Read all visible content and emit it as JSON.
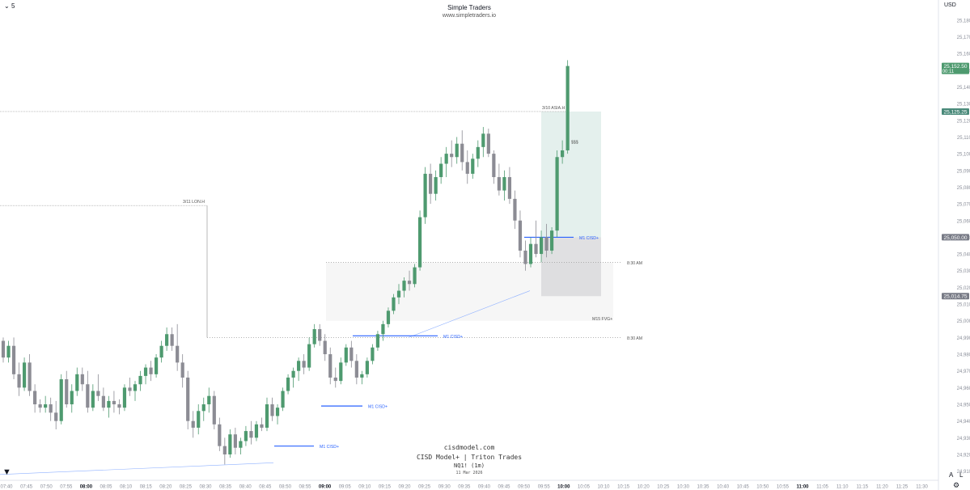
{
  "header": {
    "timeframe": "5",
    "title": "Simple Traders",
    "subtitle": "www.simpletraders.io"
  },
  "watermark": {
    "site": "cisdmodel.com",
    "line": "CISD Model+ | Triton Trades",
    "symbol": "NQ1! (1m)",
    "date": "11 Mar 2026"
  },
  "price_axis": {
    "currency": "USD"
  },
  "controls": {
    "auto": "A",
    "log": "L",
    "settings_icon": "gear-icon",
    "logo_icon": "tradingview-logo-icon"
  },
  "colors": {
    "up": "#4e9a6f",
    "down": "#8c8c94",
    "label_bg": "#787b86",
    "highlight_bg": "#4a8a7a",
    "cisd_line": "#2962ff",
    "fvg_box": "#eeeeee",
    "target_box": "#d8e9e6"
  },
  "chart_data": {
    "type": "candlestick",
    "symbol": "NQ1! (1m)",
    "ylim": [
      24905,
      25185
    ],
    "y_ticks": [
      24910,
      24920,
      24930,
      24940,
      24950,
      24960,
      24970,
      24980,
      24990,
      25000,
      25010,
      25020,
      25030,
      25040,
      25050,
      25060,
      25070,
      25080,
      25090,
      25100,
      25110,
      25120,
      25130,
      25140,
      25150,
      25160,
      25170,
      25180
    ],
    "x_ticks": [
      "07:40",
      "07:45",
      "07:50",
      "07:55",
      "08:00",
      "08:05",
      "08:10",
      "08:15",
      "08:20",
      "08:25",
      "08:30",
      "08:35",
      "08:40",
      "08:45",
      "08:50",
      "08:55",
      "09:00",
      "09:05",
      "09:10",
      "09:15",
      "09:20",
      "09:25",
      "09:30",
      "09:35",
      "09:40",
      "09:45",
      "09:50",
      "09:55",
      "10:00",
      "10:05",
      "10:10",
      "10:15",
      "10:20",
      "10:25",
      "10:30",
      "10:35",
      "10:40",
      "10:45",
      "10:50",
      "10:55",
      "11:00",
      "11:05",
      "11:10",
      "11:15",
      "11:20",
      "11:25",
      "11:30"
    ],
    "bold_x_ticks": [
      "08:00",
      "09:00",
      "10:00",
      "11:00"
    ],
    "price_labels": [
      {
        "value": "25,152.50",
        "sub": "00:11",
        "style": "live"
      },
      {
        "value": "25,125.25",
        "style": "highlight"
      },
      {
        "value": "25,050.00",
        "style": "gray"
      },
      {
        "value": "25,014.75",
        "style": "gray"
      }
    ],
    "candles": [
      [
        24988,
        24990,
        24975,
        24978
      ],
      [
        24978,
        24988,
        24975,
        24985
      ],
      [
        24985,
        24990,
        24965,
        24968
      ],
      [
        24968,
        24975,
        24955,
        24960
      ],
      [
        24960,
        24978,
        24958,
        24975
      ],
      [
        24975,
        24980,
        24955,
        24958
      ],
      [
        24958,
        24962,
        24945,
        24950
      ],
      [
        24950,
        24953,
        24945,
        24948
      ],
      [
        24948,
        24955,
        24945,
        24950
      ],
      [
        24950,
        24954,
        24940,
        24945
      ],
      [
        24945,
        24952,
        24935,
        24940
      ],
      [
        24940,
        24968,
        24938,
        24965
      ],
      [
        24965,
        24970,
        24948,
        24950
      ],
      [
        24950,
        24962,
        24945,
        24958
      ],
      [
        24958,
        24972,
        24955,
        24968
      ],
      [
        24968,
        24972,
        24958,
        24962
      ],
      [
        24962,
        24970,
        24945,
        24948
      ],
      [
        24948,
        24962,
        24946,
        24958
      ],
      [
        24958,
        24968,
        24952,
        24955
      ],
      [
        24955,
        24960,
        24946,
        24948
      ],
      [
        24948,
        24955,
        24942,
        24952
      ],
      [
        24952,
        24958,
        24945,
        24950
      ],
      [
        24950,
        24953,
        24944,
        24948
      ],
      [
        24948,
        24962,
        24946,
        24960
      ],
      [
        24960,
        24966,
        24955,
        24958
      ],
      [
        24958,
        24964,
        24952,
        24962
      ],
      [
        24962,
        24970,
        24958,
        24967
      ],
      [
        24967,
        24974,
        24962,
        24972
      ],
      [
        24972,
        24976,
        24964,
        24968
      ],
      [
        24968,
        24980,
        24966,
        24978
      ],
      [
        24978,
        24988,
        24975,
        24985
      ],
      [
        24985,
        24996,
        24982,
        24992
      ],
      [
        24992,
        24996,
        24982,
        24985
      ],
      [
        24985,
        24998,
        24970,
        24975
      ],
      [
        24975,
        24980,
        24960,
        24966
      ],
      [
        24966,
        24970,
        24935,
        24940
      ],
      [
        24940,
        24946,
        24930,
        24936
      ],
      [
        24936,
        24950,
        24932,
        24946
      ],
      [
        24946,
        24954,
        24940,
        24950
      ],
      [
        24950,
        24960,
        24945,
        24955
      ],
      [
        24955,
        24958,
        24935,
        24938
      ],
      [
        24938,
        24942,
        24922,
        24925
      ],
      [
        24925,
        24930,
        24914,
        24920
      ],
      [
        24920,
        24935,
        24918,
        24932
      ],
      [
        24932,
        24936,
        24920,
        24924
      ],
      [
        24924,
        24930,
        24920,
        24928
      ],
      [
        24928,
        24937,
        24925,
        24934
      ],
      [
        24934,
        24940,
        24926,
        24930
      ],
      [
        24930,
        24940,
        24928,
        24938
      ],
      [
        24938,
        24942,
        24934,
        24936
      ],
      [
        24936,
        24954,
        24934,
        24950
      ],
      [
        24950,
        24954,
        24940,
        24943
      ],
      [
        24943,
        24950,
        24938,
        24948
      ],
      [
        24948,
        24960,
        24946,
        24958
      ],
      [
        24958,
        24968,
        24956,
        24966
      ],
      [
        24966,
        24972,
        24960,
        24970
      ],
      [
        24970,
        24978,
        24964,
        24976
      ],
      [
        24976,
        24980,
        24968,
        24972
      ],
      [
        24972,
        24990,
        24970,
        24986
      ],
      [
        24986,
        24998,
        24984,
        24995
      ],
      [
        24995,
        24998,
        24985,
        24988
      ],
      [
        24988,
        24992,
        24976,
        24980
      ],
      [
        24980,
        24984,
        24962,
        24966
      ],
      [
        24966,
        24972,
        24960,
        24964
      ],
      [
        24964,
        24978,
        24962,
        24975
      ],
      [
        24975,
        24986,
        24973,
        24984
      ],
      [
        24984,
        24988,
        24972,
        24976
      ],
      [
        24976,
        24980,
        24962,
        24966
      ],
      [
        24966,
        24970,
        24962,
        24968
      ],
      [
        24968,
        24978,
        24966,
        24976
      ],
      [
        24976,
        24986,
        24974,
        24984
      ],
      [
        24984,
        24994,
        24982,
        24992
      ],
      [
        24992,
        25000,
        24988,
        24998
      ],
      [
        24998,
        25008,
        24996,
        25006
      ],
      [
        25006,
        25016,
        25004,
        25014
      ],
      [
        25014,
        25022,
        25010,
        25018
      ],
      [
        25018,
        25026,
        25014,
        25024
      ],
      [
        25024,
        25030,
        25018,
        25022
      ],
      [
        25022,
        25034,
        25020,
        25032
      ],
      [
        25032,
        25066,
        25030,
        25062
      ],
      [
        25062,
        25092,
        25058,
        25088
      ],
      [
        25088,
        25094,
        25070,
        25076
      ],
      [
        25076,
        25090,
        25072,
        25086
      ],
      [
        25086,
        25098,
        25082,
        25094
      ],
      [
        25094,
        25104,
        25086,
        25100
      ],
      [
        25100,
        25108,
        25092,
        25098
      ],
      [
        25098,
        25110,
        25094,
        25106
      ],
      [
        25106,
        25114,
        25090,
        25095
      ],
      [
        25095,
        25102,
        25082,
        25088
      ],
      [
        25088,
        25100,
        25085,
        25097
      ],
      [
        25097,
        25108,
        25092,
        25104
      ],
      [
        25104,
        25116,
        25098,
        25112
      ],
      [
        25112,
        25115,
        25098,
        25100
      ],
      [
        25100,
        25102,
        25082,
        25086
      ],
      [
        25086,
        25094,
        25075,
        25078
      ],
      [
        25078,
        25090,
        25072,
        25086
      ],
      [
        25086,
        25092,
        25070,
        25073
      ],
      [
        25073,
        25078,
        25055,
        25060
      ],
      [
        25060,
        25066,
        25038,
        25042
      ],
      [
        25042,
        25048,
        25030,
        25034
      ],
      [
        25034,
        25050,
        25032,
        25046
      ],
      [
        25046,
        25060,
        25038,
        25040
      ],
      [
        25040,
        25054,
        25035,
        25050
      ],
      [
        25050,
        25058,
        25038,
        25042
      ],
      [
        25042,
        25056,
        25040,
        25054
      ],
      [
        25054,
        25102,
        25050,
        25098
      ],
      [
        25098,
        25108,
        25094,
        25102
      ],
      [
        25102,
        25156,
        25100,
        25152.5
      ]
    ],
    "annotations": [
      {
        "text": "3/11 LON.H",
        "price": 25069
      },
      {
        "text": "3/10 ASIA.H",
        "price": 25125.25
      },
      {
        "text": "M1 CISD+",
        "price": 25050
      },
      {
        "text": "M1 CISD+",
        "price": 24991
      },
      {
        "text": "M1 CISD+",
        "price": 24949
      },
      {
        "text": "M1 CISD+",
        "price": 24925
      },
      {
        "text": "M15 FVG+",
        "price": 25000
      },
      {
        "text": "8:30 AM",
        "price": 25035
      },
      {
        "text": "8:30 AM",
        "price": 24990
      },
      {
        "text": "$$$",
        "price": 25107
      }
    ],
    "zones": [
      {
        "name": "M15 FVG+",
        "top": 25035,
        "bottom": 25000
      },
      {
        "name": "target",
        "top": 25125.25,
        "bottom": 25050
      },
      {
        "name": "risk",
        "top": 25050,
        "bottom": 25014.75
      }
    ]
  }
}
